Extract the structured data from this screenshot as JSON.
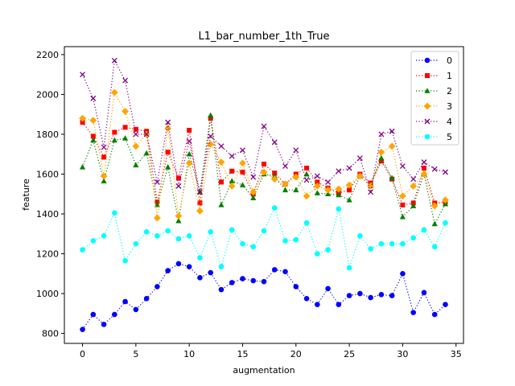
{
  "chart_data": {
    "type": "line",
    "title": "L1_bar_number_1th_True",
    "xlabel": "augmentation",
    "ylabel": "feature",
    "xlim": [
      -1.7,
      35.7
    ],
    "ylim": [
      750,
      2240
    ],
    "xticks": [
      0,
      5,
      10,
      15,
      20,
      25,
      30,
      35
    ],
    "yticks": [
      800,
      1000,
      1200,
      1400,
      1600,
      1800,
      2000,
      2200
    ],
    "grid": false,
    "legend_position": "top-right",
    "x": [
      0,
      1,
      2,
      3,
      4,
      5,
      6,
      7,
      8,
      9,
      10,
      11,
      12,
      13,
      14,
      15,
      16,
      17,
      18,
      19,
      20,
      21,
      22,
      23,
      24,
      25,
      26,
      27,
      28,
      29,
      30,
      31,
      32,
      33,
      34
    ],
    "series": [
      {
        "name": "0",
        "color": "#0000ff",
        "marker": "circle",
        "values": [
          820,
          895,
          845,
          895,
          960,
          920,
          975,
          1035,
          1115,
          1150,
          1135,
          1080,
          1105,
          1020,
          1055,
          1075,
          1065,
          1060,
          1120,
          1110,
          1035,
          975,
          945,
          1025,
          945,
          990,
          1000,
          980,
          995,
          990,
          1100,
          905,
          1005,
          895,
          945
        ]
      },
      {
        "name": "1",
        "color": "#ff0000",
        "marker": "square",
        "values": [
          1860,
          1790,
          1685,
          1810,
          1835,
          1825,
          1815,
          1460,
          1710,
          1580,
          1820,
          1455,
          1880,
          1560,
          1615,
          1610,
          1500,
          1650,
          1605,
          1550,
          1600,
          1630,
          1560,
          1530,
          1505,
          1520,
          1600,
          1555,
          1665,
          1575,
          1445,
          1455,
          1630,
          1455,
          1460
        ]
      },
      {
        "name": "2",
        "color": "#008000",
        "marker": "triangle",
        "values": [
          1635,
          1770,
          1565,
          1770,
          1780,
          1645,
          1705,
          1445,
          1635,
          1365,
          1700,
          1510,
          1895,
          1445,
          1565,
          1545,
          1480,
          1600,
          1590,
          1520,
          1520,
          1600,
          1505,
          1500,
          1495,
          1470,
          1590,
          1540,
          1680,
          1580,
          1385,
          1440,
          1600,
          1350,
          1450
        ]
      },
      {
        "name": "3",
        "color": "#ffa500",
        "marker": "diamond",
        "values": [
          1880,
          1870,
          1590,
          2010,
          1915,
          1740,
          1800,
          1380,
          1830,
          1390,
          1655,
          1415,
          1750,
          1660,
          1540,
          1655,
          1510,
          1610,
          1575,
          1550,
          1585,
          1490,
          1540,
          1520,
          1525,
          1545,
          1590,
          1540,
          1710,
          1740,
          1490,
          1540,
          1600,
          1440,
          1470
        ]
      },
      {
        "name": "4",
        "color": "#800080",
        "marker": "x",
        "values": [
          2100,
          1980,
          1735,
          2170,
          2070,
          1800,
          1800,
          1560,
          1860,
          1540,
          1765,
          1510,
          1790,
          1740,
          1690,
          1720,
          1585,
          1840,
          1760,
          1640,
          1720,
          1570,
          1590,
          1560,
          1615,
          1630,
          1680,
          1510,
          1800,
          1815,
          1640,
          1575,
          1660,
          1625,
          1610
        ]
      },
      {
        "name": "5",
        "color": "#00ffff",
        "marker": "circle",
        "values": [
          1220,
          1265,
          1290,
          1405,
          1165,
          1250,
          1310,
          1290,
          1315,
          1275,
          1290,
          1180,
          1310,
          1135,
          1320,
          1250,
          1235,
          1315,
          1430,
          1265,
          1270,
          1355,
          1200,
          1220,
          1425,
          1130,
          1290,
          1225,
          1250,
          1250,
          1250,
          1280,
          1320,
          1235,
          1355
        ]
      }
    ]
  }
}
